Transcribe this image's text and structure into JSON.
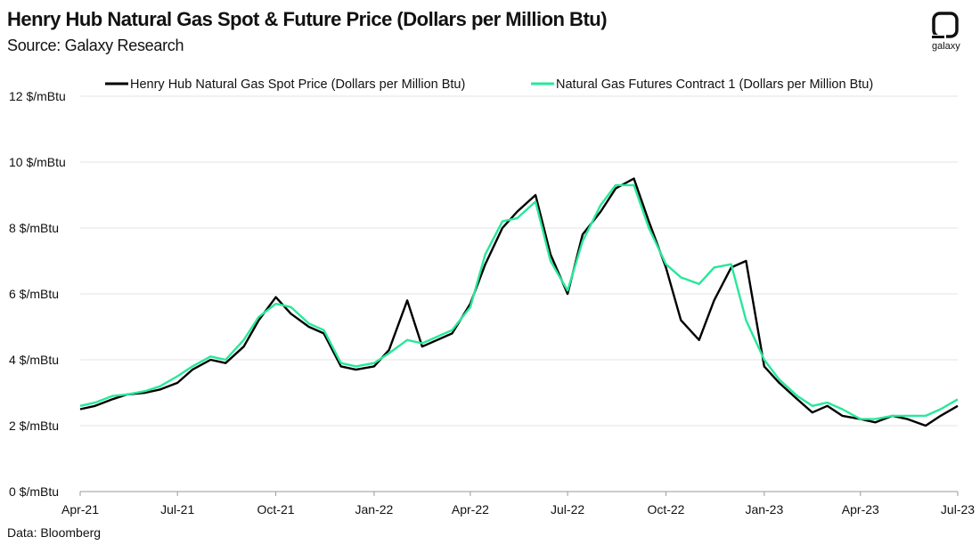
{
  "header": {
    "title": "Henry Hub Natural Gas Spot & Future Price (Dollars per Million Btu)",
    "subtitle": "Source: Galaxy Research",
    "logo_text": "galaxy"
  },
  "footer": {
    "note": "Data: Bloomberg"
  },
  "colors": {
    "spot": "#000000",
    "futures": "#27e89a",
    "grid": "#e3e3e3",
    "axis": "#9a9a9a"
  },
  "chart_data": {
    "type": "line",
    "title": "Henry Hub Natural Gas Spot & Future Price (Dollars per Million Btu)",
    "xlabel": "",
    "ylabel": "",
    "x_ticks": [
      "Apr-21",
      "Jul-21",
      "Oct-21",
      "Jan-22",
      "Apr-22",
      "Jul-22",
      "Oct-22",
      "Jan-23",
      "Apr-23",
      "Jul-23"
    ],
    "y_ticks": [
      "0 $/mBtu",
      "2 $/mBtu",
      "4 $/mBtu",
      "6 $/mBtu",
      "8 $/mBtu",
      "10 $/mBtu",
      "12 $/mBtu"
    ],
    "ylim": [
      0,
      12
    ],
    "grid": true,
    "legend_position": "top",
    "x": [
      "2021-04-01",
      "2021-04-15",
      "2021-05-01",
      "2021-05-15",
      "2021-06-01",
      "2021-06-15",
      "2021-07-01",
      "2021-07-15",
      "2021-08-01",
      "2021-08-15",
      "2021-09-01",
      "2021-09-15",
      "2021-10-01",
      "2021-10-15",
      "2021-11-01",
      "2021-11-15",
      "2021-12-01",
      "2021-12-15",
      "2022-01-01",
      "2022-01-15",
      "2022-02-01",
      "2022-02-15",
      "2022-03-01",
      "2022-03-15",
      "2022-04-01",
      "2022-04-15",
      "2022-05-01",
      "2022-05-15",
      "2022-06-01",
      "2022-06-15",
      "2022-07-01",
      "2022-07-15",
      "2022-08-01",
      "2022-08-15",
      "2022-09-01",
      "2022-09-15",
      "2022-10-01",
      "2022-10-15",
      "2022-11-01",
      "2022-11-15",
      "2022-12-01",
      "2022-12-15",
      "2023-01-01",
      "2023-01-15",
      "2023-02-01",
      "2023-02-15",
      "2023-03-01",
      "2023-03-15",
      "2023-04-01",
      "2023-04-15",
      "2023-05-01",
      "2023-05-15",
      "2023-06-01",
      "2023-06-15",
      "2023-07-01"
    ],
    "series": [
      {
        "name": "Henry Hub Natural Gas Spot Price (Dollars per Million Btu)",
        "color": "#000000",
        "values": [
          2.5,
          2.6,
          2.8,
          2.95,
          3.0,
          3.1,
          3.3,
          3.7,
          4.0,
          3.9,
          4.4,
          5.2,
          5.9,
          5.4,
          5.0,
          4.8,
          3.8,
          3.7,
          3.8,
          4.3,
          5.8,
          4.4,
          4.6,
          4.8,
          5.7,
          6.9,
          8.0,
          8.5,
          9.0,
          7.2,
          6.0,
          7.8,
          8.5,
          9.2,
          9.5,
          8.2,
          6.8,
          5.2,
          4.6,
          5.8,
          6.8,
          7.0,
          3.8,
          3.3,
          2.8,
          2.4,
          2.6,
          2.3,
          2.2,
          2.1,
          2.3,
          2.2,
          2.0,
          2.3,
          2.6
        ]
      },
      {
        "name": "Natural Gas Futures Contract 1 (Dollars per Million Btu)",
        "color": "#27e89a",
        "values": [
          2.6,
          2.7,
          2.9,
          2.95,
          3.05,
          3.2,
          3.5,
          3.8,
          4.1,
          4.0,
          4.6,
          5.3,
          5.7,
          5.6,
          5.1,
          4.9,
          3.9,
          3.8,
          3.9,
          4.2,
          4.6,
          4.5,
          4.7,
          4.9,
          5.6,
          7.2,
          8.2,
          8.3,
          8.8,
          7.0,
          6.1,
          7.6,
          8.7,
          9.3,
          9.3,
          8.0,
          6.9,
          6.5,
          6.3,
          6.8,
          6.9,
          5.2,
          4.0,
          3.4,
          2.9,
          2.6,
          2.7,
          2.5,
          2.2,
          2.2,
          2.3,
          2.3,
          2.3,
          2.5,
          2.8
        ]
      }
    ]
  }
}
